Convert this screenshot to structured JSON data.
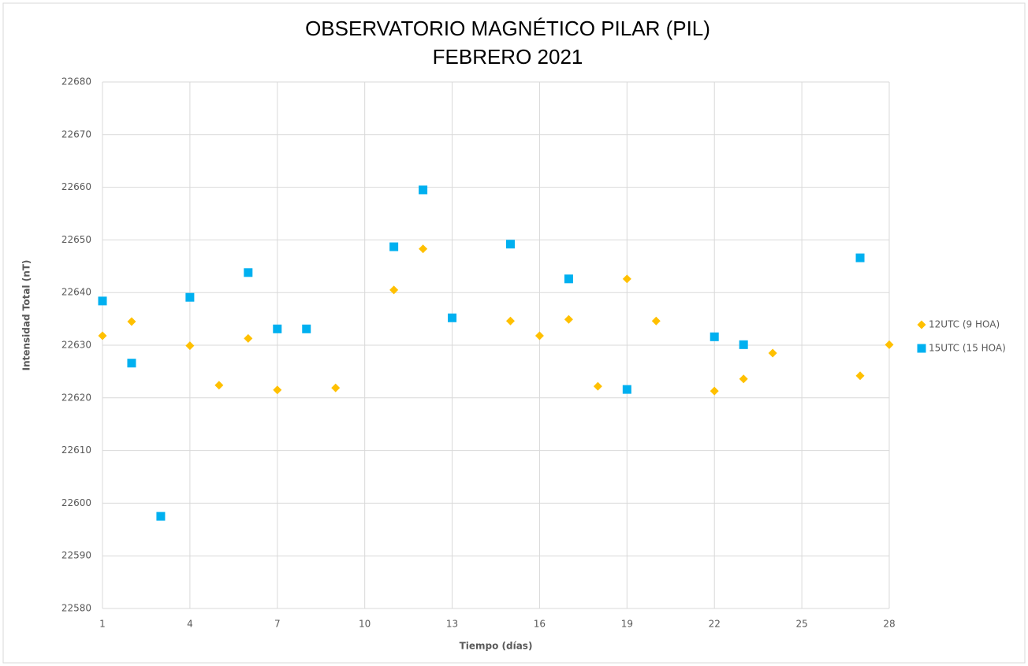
{
  "chart_data": {
    "type": "scatter",
    "title": "OBSERVATORIO MAGNÉTICO PILAR (PIL)",
    "subtitle": "FEBRERO 2021",
    "x_label": "Tiempo (días)",
    "y_label": "Intensidad Total (nT)",
    "xlim": [
      1,
      28
    ],
    "xticks": [
      1,
      4,
      7,
      10,
      13,
      16,
      19,
      22,
      25,
      28
    ],
    "ylim": [
      22580,
      22680
    ],
    "yticks": [
      22580,
      22590,
      22600,
      22610,
      22620,
      22630,
      22640,
      22650,
      22660,
      22670,
      22680
    ],
    "grid": true,
    "legend": "right",
    "series": [
      {
        "name": "12UTC (9 HOA)",
        "color": "#ffc000",
        "marker": "diamond",
        "x": [
          1,
          2,
          4,
          5,
          6,
          7,
          9,
          11,
          12,
          15,
          16,
          17,
          18,
          19,
          20,
          22,
          23,
          24,
          27,
          28
        ],
        "values": [
          22631.8,
          22634.5,
          22629.9,
          22622.4,
          22631.3,
          22621.5,
          22621.9,
          22640.5,
          22648.3,
          22634.6,
          22631.8,
          22634.9,
          22622.2,
          22642.6,
          22634.6,
          22621.3,
          22623.6,
          22628.5,
          22624.2,
          22630.1
        ]
      },
      {
        "name": "15UTC (15 HOA)",
        "color": "#00b0f0",
        "marker": "square",
        "x": [
          1,
          2,
          3,
          4,
          6,
          7,
          8,
          11,
          12,
          13,
          15,
          17,
          19,
          22,
          23,
          27
        ],
        "values": [
          22638.4,
          22626.6,
          22597.5,
          22639.1,
          22643.8,
          22633.1,
          22633.1,
          22648.7,
          22659.5,
          22635.2,
          22649.2,
          22642.6,
          22621.6,
          22631.6,
          22630.1,
          22646.6
        ]
      }
    ]
  }
}
